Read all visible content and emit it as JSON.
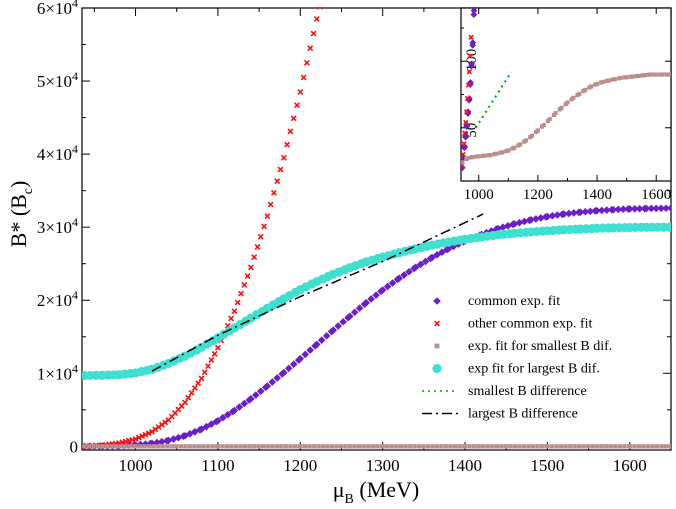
{
  "chart_data": [
    {
      "type": "scatter",
      "xlabel": "μ",
      "xlabel_sub": "B",
      "xlabel_unit": " (MeV)",
      "ylabel": "B* (B",
      "ylabel_sub": "c",
      "ylabel_close": ")",
      "xlim": [
        935,
        1650
      ],
      "ylim": [
        -500,
        60000
      ],
      "xticks": [
        1000,
        1100,
        1200,
        1300,
        1400,
        1500,
        1600
      ],
      "xtick_labels": [
        "1000",
        "1100",
        "1200",
        "1300",
        "1400",
        "1500",
        "1600"
      ],
      "yticks": [
        {
          "value": 0,
          "mantissa": "0",
          "exp": ""
        },
        {
          "value": 10000,
          "mantissa": "1×10",
          "exp": "4"
        },
        {
          "value": 20000,
          "mantissa": "2×10",
          "exp": "4"
        },
        {
          "value": 30000,
          "mantissa": "3×10",
          "exp": "4"
        },
        {
          "value": 40000,
          "mantissa": "4×10",
          "exp": "4"
        },
        {
          "value": 50000,
          "mantissa": "5×10",
          "exp": "4"
        },
        {
          "value": 60000,
          "mantissa": "6×10",
          "exp": "4"
        }
      ],
      "legend_position": "lower-right",
      "series": [
        {
          "name": "common exp. fit",
          "marker": "diamond",
          "color": "#6a1fc8",
          "points": [
            [
              938,
              0
            ],
            [
              960,
              30
            ],
            [
              980,
              80
            ],
            [
              1000,
              180
            ],
            [
              1020,
              400
            ],
            [
              1040,
              800
            ],
            [
              1060,
              1450
            ],
            [
              1080,
              2350
            ],
            [
              1100,
              3500
            ],
            [
              1120,
              4900
            ],
            [
              1140,
              6500
            ],
            [
              1160,
              8250
            ],
            [
              1180,
              10100
            ],
            [
              1200,
              12000
            ],
            [
              1220,
              13950
            ],
            [
              1240,
              15900
            ],
            [
              1260,
              17800
            ],
            [
              1280,
              19650
            ],
            [
              1300,
              21400
            ],
            [
              1320,
              23000
            ],
            [
              1340,
              24500
            ],
            [
              1360,
              25850
            ],
            [
              1380,
              27050
            ],
            [
              1400,
              28100
            ],
            [
              1420,
              29000
            ],
            [
              1440,
              29800
            ],
            [
              1460,
              30450
            ],
            [
              1480,
              31000
            ],
            [
              1500,
              31450
            ],
            [
              1520,
              31800
            ],
            [
              1540,
              32050
            ],
            [
              1560,
              32250
            ],
            [
              1580,
              32400
            ],
            [
              1600,
              32500
            ],
            [
              1620,
              32550
            ],
            [
              1650,
              32600
            ]
          ]
        },
        {
          "name": "other common exp. fit",
          "marker": "x",
          "color": "#ff1010",
          "points": [
            [
              940,
              0
            ],
            [
              960,
              150
            ],
            [
              980,
              450
            ],
            [
              1000,
              1000
            ],
            [
              1020,
              2000
            ],
            [
              1040,
              3600
            ],
            [
              1060,
              6000
            ],
            [
              1080,
              9300
            ],
            [
              1100,
              13500
            ],
            [
              1120,
              18500
            ],
            [
              1140,
              24500
            ],
            [
              1160,
              31500
            ],
            [
              1180,
              39500
            ],
            [
              1200,
              48500
            ],
            [
              1220,
              58500
            ],
            [
              1226,
              61000
            ]
          ]
        },
        {
          "name": "exp. fit for smallest B dif.",
          "marker": "square",
          "color": "#bc8f8f",
          "points": [
            [
              938,
              0
            ],
            [
              1000,
              0
            ],
            [
              1100,
              0
            ],
            [
              1200,
              0
            ],
            [
              1300,
              0
            ],
            [
              1400,
              0
            ],
            [
              1500,
              0
            ],
            [
              1600,
              0
            ],
            [
              1650,
              0
            ]
          ]
        },
        {
          "name": "exp fit for largest B dif.",
          "marker": "circle",
          "color": "#40e0d0",
          "points": [
            [
              938,
              9700
            ],
            [
              960,
              9720
            ],
            [
              980,
              9800
            ],
            [
              1000,
              10050
            ],
            [
              1020,
              10550
            ],
            [
              1040,
              11350
            ],
            [
              1060,
              12350
            ],
            [
              1080,
              13550
            ],
            [
              1100,
              14850
            ],
            [
              1120,
              16200
            ],
            [
              1140,
              17550
            ],
            [
              1160,
              18900
            ],
            [
              1180,
              20200
            ],
            [
              1200,
              21450
            ],
            [
              1220,
              22550
            ],
            [
              1240,
              23550
            ],
            [
              1260,
              24450
            ],
            [
              1280,
              25250
            ],
            [
              1300,
              25900
            ],
            [
              1320,
              26500
            ],
            [
              1340,
              27050
            ],
            [
              1360,
              27550
            ],
            [
              1380,
              27950
            ],
            [
              1400,
              28350
            ],
            [
              1420,
              28650
            ],
            [
              1440,
              28950
            ],
            [
              1460,
              29150
            ],
            [
              1480,
              29350
            ],
            [
              1500,
              29500
            ],
            [
              1520,
              29650
            ],
            [
              1540,
              29750
            ],
            [
              1560,
              29850
            ],
            [
              1580,
              29900
            ],
            [
              1600,
              29950
            ],
            [
              1620,
              30000
            ],
            [
              1650,
              30000
            ]
          ]
        },
        {
          "name": "smallest B difference",
          "line": "dotted",
          "color": "#00a000",
          "points": []
        },
        {
          "name": "largest B difference",
          "line": "dashdot",
          "color": "#000000",
          "points": [
            [
              1020,
              10300
            ],
            [
              1100,
              15200
            ],
            [
              1200,
              20500
            ],
            [
              1300,
              25300
            ],
            [
              1422,
              31800
            ]
          ]
        }
      ]
    },
    {
      "type": "scatter",
      "xlim": [
        940,
        1650
      ],
      "ylim": [
        10,
        140
      ],
      "xticks": [
        1000,
        1200,
        1400,
        1600
      ],
      "xtick_labels": [
        "1000",
        "1200",
        "1400",
        "1600"
      ],
      "yticks": [
        50,
        100
      ],
      "ytick_labels": [
        "50",
        "100"
      ],
      "series": [
        {
          "name": "common exp. fit",
          "marker": "diamond",
          "color": "#6a1fc8",
          "points": [
            [
              944,
              20
            ],
            [
              948,
              28
            ],
            [
              952,
              36
            ],
            [
              956,
              44
            ],
            [
              960,
              52
            ],
            [
              964,
              62
            ],
            [
              968,
              72
            ],
            [
              972,
              84
            ],
            [
              976,
              98
            ],
            [
              980,
              114
            ],
            [
              984,
              138
            ]
          ]
        },
        {
          "name": "other common exp. fit",
          "marker": "x",
          "color": "#ff1010",
          "points": [
            [
              944,
              22
            ],
            [
              947,
              30
            ],
            [
              950,
              38
            ],
            [
              953,
              46
            ],
            [
              956,
              54
            ],
            [
              959,
              62
            ],
            [
              962,
              72
            ],
            [
              965,
              82
            ],
            [
              968,
              92
            ],
            [
              971,
              104
            ],
            [
              974,
              118
            ]
          ]
        },
        {
          "name": "exp. fit for smallest B dif.",
          "marker": "square",
          "color": "#bc8f8f",
          "points": [
            [
              944,
              24
            ],
            [
              960,
              27
            ],
            [
              980,
              28
            ],
            [
              1000,
              28.5
            ],
            [
              1020,
              29
            ],
            [
              1040,
              29.5
            ],
            [
              1060,
              30.5
            ],
            [
              1080,
              31.5
            ],
            [
              1100,
              33
            ],
            [
              1120,
              35
            ],
            [
              1140,
              37.5
            ],
            [
              1160,
              40.5
            ],
            [
              1180,
              44
            ],
            [
              1200,
              48
            ],
            [
              1220,
              52
            ],
            [
              1240,
              56.5
            ],
            [
              1260,
              61
            ],
            [
              1280,
              65
            ],
            [
              1300,
              69
            ],
            [
              1320,
              72.5
            ],
            [
              1340,
              75.5
            ],
            [
              1360,
              78.5
            ],
            [
              1380,
              81
            ],
            [
              1400,
              83
            ],
            [
              1420,
              84.5
            ],
            [
              1440,
              85.5
            ],
            [
              1460,
              86.5
            ],
            [
              1480,
              87.5
            ],
            [
              1500,
              88
            ],
            [
              1520,
              88.5
            ],
            [
              1540,
              89
            ],
            [
              1560,
              89.5
            ],
            [
              1580,
              90
            ],
            [
              1600,
              90
            ],
            [
              1620,
              90
            ],
            [
              1645,
              90
            ]
          ]
        },
        {
          "name": "smallest B difference",
          "line": "dotted",
          "color": "#00a000",
          "points": [
            [
              990,
              50
            ],
            [
              1110,
              92
            ]
          ]
        }
      ]
    }
  ]
}
